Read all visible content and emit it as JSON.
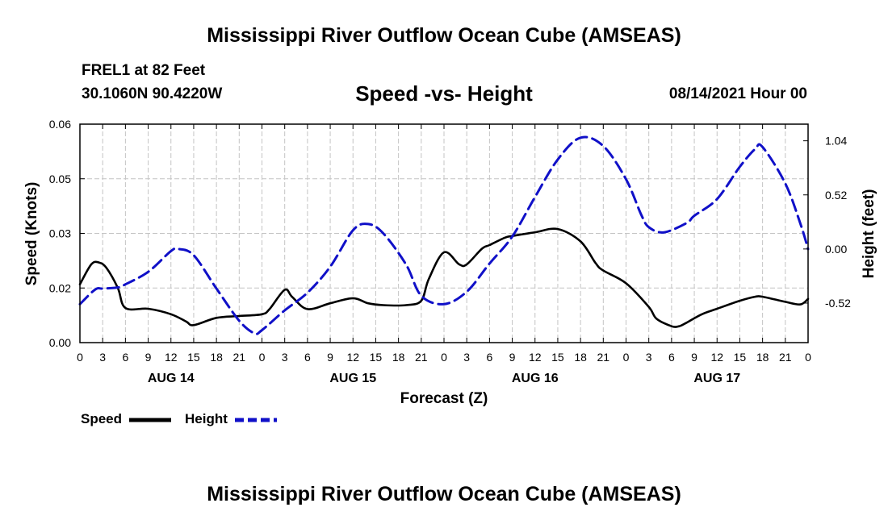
{
  "header": {
    "title": "Mississippi River Outflow Ocean Cube (AMSEAS)",
    "station": "FREL1 at 82 Feet",
    "coords": "30.1060N  90.4220W",
    "subtitle": "Speed -vs- Height",
    "datetime": "08/14/2021 Hour 00"
  },
  "footer": {
    "title": "Mississippi River Outflow Ocean Cube (AMSEAS)"
  },
  "chart_data": {
    "type": "line",
    "title": "Speed -vs- Height",
    "xlabel": "Forecast (Z)",
    "ylabel": "Speed (Knots)",
    "y2label": "Height (feet)",
    "xlim": [
      0,
      96
    ],
    "ylim": [
      0,
      0.06
    ],
    "y2lim": [
      -0.9,
      1.2
    ],
    "grid": true,
    "x_tick_labels": [
      "0",
      "3",
      "6",
      "9",
      "12",
      "15",
      "18",
      "21",
      "0",
      "3",
      "6",
      "9",
      "12",
      "15",
      "18",
      "21",
      "0",
      "3",
      "6",
      "9",
      "12",
      "15",
      "18",
      "21",
      "0",
      "3",
      "6",
      "9",
      "12",
      "15",
      "18",
      "21",
      "0"
    ],
    "day_labels": [
      {
        "label": "AUG 14",
        "hour": 12
      },
      {
        "label": "AUG 15",
        "hour": 36
      },
      {
        "label": "AUG 16",
        "hour": 60
      },
      {
        "label": "AUG 17",
        "hour": 84
      }
    ],
    "y_ticks": [
      "0.00",
      "0.02",
      "0.03",
      "0.05",
      "0.06"
    ],
    "y_tick_values": [
      0,
      0.015,
      0.03,
      0.045,
      0.06
    ],
    "y2_ticks": [
      "1.04",
      "0.52",
      "0.00",
      "-0.52"
    ],
    "y2_tick_values": [
      1.04,
      0.52,
      0.0,
      -0.52
    ],
    "series": [
      {
        "name": "Speed",
        "axis": "left",
        "color": "#000000",
        "style": "solid",
        "x": [
          0,
          1.5,
          2.5,
          3.5,
          5,
          6,
          9,
          12,
          14,
          15,
          18,
          21,
          24,
          25,
          27,
          28,
          30,
          33,
          36,
          38,
          40,
          43,
          45,
          46,
          48,
          50,
          51,
          53,
          54,
          56,
          57,
          60,
          63,
          66,
          68,
          69,
          72,
          75,
          76,
          78,
          79,
          80,
          82,
          84,
          87,
          89,
          90,
          93,
          95,
          96
        ],
        "values": [
          0.016,
          0.0215,
          0.022,
          0.0205,
          0.015,
          0.0095,
          0.0093,
          0.0078,
          0.0058,
          0.0048,
          0.0068,
          0.0073,
          0.0078,
          0.0092,
          0.0145,
          0.0125,
          0.0092,
          0.0108,
          0.0122,
          0.0108,
          0.0103,
          0.0103,
          0.0115,
          0.0175,
          0.0248,
          0.0215,
          0.0215,
          0.0258,
          0.0268,
          0.0288,
          0.0293,
          0.0303,
          0.0312,
          0.0278,
          0.0218,
          0.0198,
          0.0163,
          0.0098,
          0.0066,
          0.0045,
          0.0045,
          0.0055,
          0.0078,
          0.0093,
          0.0115,
          0.0126,
          0.0126,
          0.0112,
          0.0105,
          0.012
        ]
      },
      {
        "name": "Height",
        "axis": "right",
        "color": "#1010c8",
        "style": "dashed",
        "x": [
          0,
          2,
          3,
          5,
          6,
          9,
          12,
          13,
          15,
          18,
          21,
          23,
          24,
          27,
          30,
          33,
          36,
          38,
          40,
          43,
          45,
          48,
          51,
          54,
          57,
          60,
          63,
          66,
          69,
          72,
          74,
          75,
          77,
          80,
          81,
          84,
          87,
          89,
          90,
          93,
          95,
          96
        ],
        "values": [
          -0.53,
          -0.39,
          -0.38,
          -0.37,
          -0.34,
          -0.22,
          -0.02,
          0.0,
          -0.06,
          -0.38,
          -0.69,
          -0.81,
          -0.78,
          -0.59,
          -0.42,
          -0.17,
          0.18,
          0.24,
          0.15,
          -0.15,
          -0.45,
          -0.53,
          -0.41,
          -0.14,
          0.12,
          0.5,
          0.86,
          1.07,
          0.99,
          0.67,
          0.33,
          0.21,
          0.16,
          0.25,
          0.32,
          0.48,
          0.79,
          0.96,
          0.98,
          0.63,
          0.24,
          0.0
        ]
      }
    ],
    "legend": {
      "placement": "bottom-left",
      "items": [
        {
          "label": "Speed",
          "color": "#000000",
          "style": "solid"
        },
        {
          "label": "Height",
          "color": "#1010c8",
          "style": "dashed"
        }
      ]
    }
  }
}
